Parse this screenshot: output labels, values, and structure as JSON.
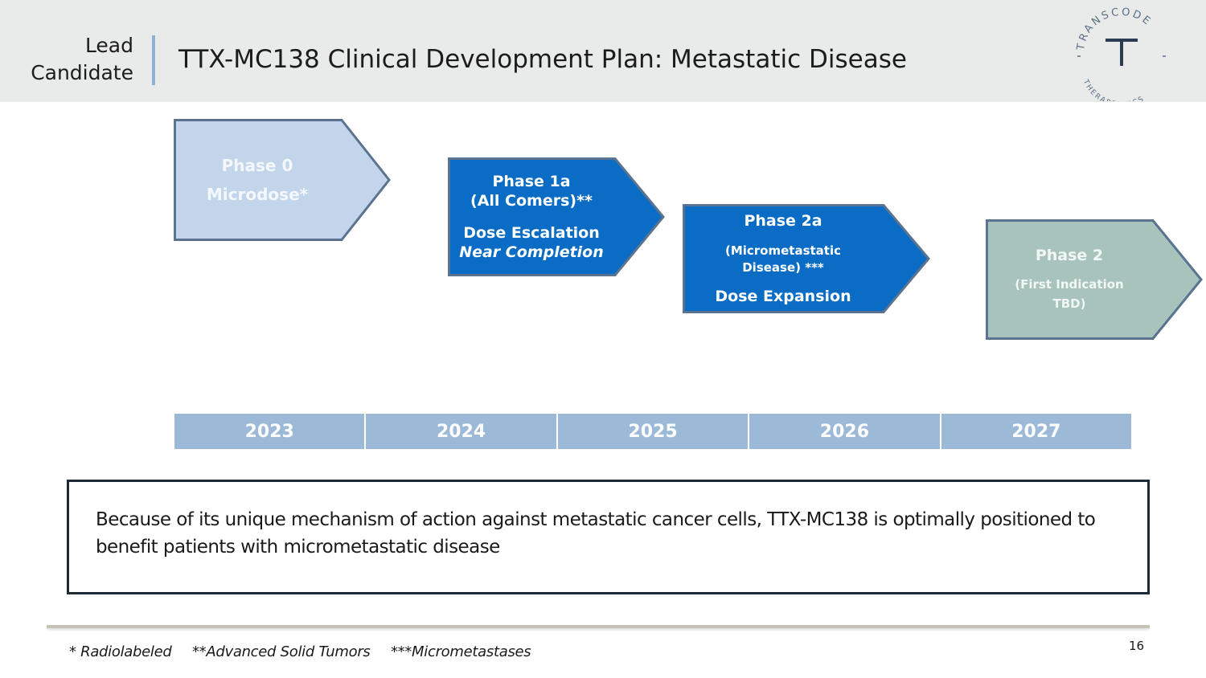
{
  "header": {
    "section_label_line1": "Lead",
    "section_label_line2": "Candidate",
    "title": "TTX-MC138 Clinical Development Plan: Metastatic Disease"
  },
  "logo": {
    "company_top": "TRANSCODE",
    "company_bottom": "THERAPEUTICS",
    "monogram": "T"
  },
  "phases": [
    {
      "lines": [
        "Phase 0",
        "Microdose*"
      ],
      "status": "completed",
      "color": "#c3d5ea",
      "border": "#5a7391"
    },
    {
      "lines": [
        "Phase 1a",
        "(All Comers)**",
        "Dose Escalation",
        "Near Completion"
      ],
      "status": "in-progress",
      "color": "#0a6cc4",
      "border": "#5a7391"
    },
    {
      "lines": [
        "Phase 2a",
        "(Micrometastatic",
        "Disease) ***",
        "Dose Expansion"
      ],
      "status": "planned",
      "color": "#0a6cc4",
      "border": "#5a7391"
    },
    {
      "lines": [
        "Phase 2",
        "(First Indication",
        "TBD)"
      ],
      "status": "future",
      "color": "#a8c3bb",
      "border": "#5a7391"
    }
  ],
  "timeline": {
    "years": [
      "2023",
      "2024",
      "2025",
      "2026",
      "2027"
    ]
  },
  "statement": "Because of its unique mechanism of action against metastatic cancer cells, TTX-MC138 is optimally positioned to benefit patients with micrometastatic disease",
  "footnotes": [
    "* Radiolabeled",
    "**Advanced Solid Tumors",
    "***Micrometastases"
  ],
  "page_number": "16"
}
